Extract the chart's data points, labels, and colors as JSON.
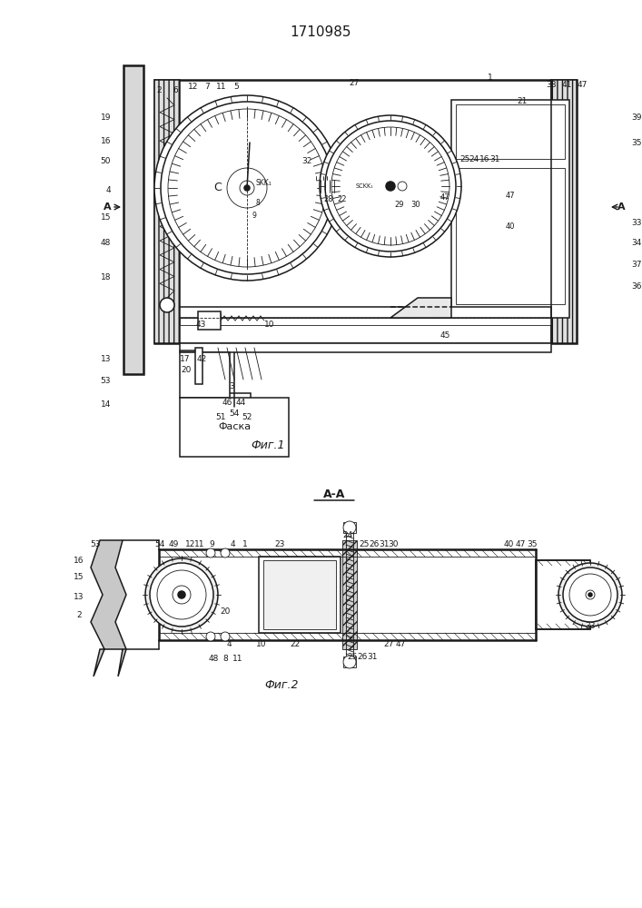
{
  "title": "1710985",
  "fig1_caption": "Фиг.1",
  "fig2_caption": "Фиг.2",
  "fig2_title": "А-А",
  "fasca_label": "Фаска",
  "background_color": "#ffffff",
  "line_color": "#1a1a1a"
}
